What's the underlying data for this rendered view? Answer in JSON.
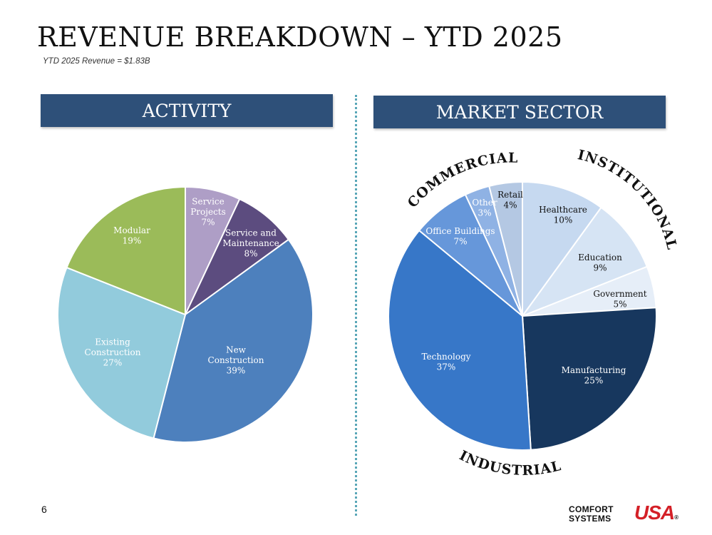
{
  "title": "REVENUE BREAKDOWN – YTD 2025",
  "subtitle": "YTD 2025 Revenue = $1.83B",
  "page_number": "6",
  "logo": {
    "line1": "COMFORT",
    "line2": "SYSTEMS",
    "usa": "USA",
    "registered": "®"
  },
  "chart_data": [
    {
      "type": "pie",
      "title": "ACTIVITY",
      "slices": [
        {
          "label": "Service Projects",
          "lines": [
            "Service",
            "Projects",
            "7%"
          ],
          "value": 7,
          "color": "#ae9ec6",
          "text_color": "#ffffff"
        },
        {
          "label": "Service and Maintenance",
          "lines": [
            "Service and",
            "Maintenance",
            "8%"
          ],
          "value": 8,
          "color": "#5c4c7f",
          "text_color": "#ffffff"
        },
        {
          "label": "New Construction",
          "lines": [
            "New",
            "Construction",
            "39%"
          ],
          "value": 39,
          "color": "#4d80bd",
          "text_color": "#ffffff"
        },
        {
          "label": "Existing Construction",
          "lines": [
            "Existing",
            "Construction",
            "27%"
          ],
          "value": 27,
          "color": "#92cbdc",
          "text_color": "#ffffff"
        },
        {
          "label": "Modular",
          "lines": [
            "Modular",
            "19%"
          ],
          "value": 19,
          "color": "#9bbb59",
          "text_color": "#ffffff"
        }
      ]
    },
    {
      "type": "pie",
      "title": "MARKET SECTOR",
      "slices": [
        {
          "label": "Healthcare",
          "lines": [
            "Healthcare",
            "10%"
          ],
          "value": 10,
          "color": "#c6d9f0",
          "text_color": "#111111"
        },
        {
          "label": "Education",
          "lines": [
            "Education",
            "9%"
          ],
          "value": 9,
          "color": "#d6e4f4",
          "text_color": "#111111"
        },
        {
          "label": "Government",
          "lines": [
            "Government",
            "5%"
          ],
          "value": 5,
          "color": "#e6eef8",
          "text_color": "#111111"
        },
        {
          "label": "Manufacturing",
          "lines": [
            "Manufacturing",
            "25%"
          ],
          "value": 25,
          "color": "#17375e",
          "text_color": "#ffffff"
        },
        {
          "label": "Technology",
          "lines": [
            "Technology",
            "37%"
          ],
          "value": 37,
          "color": "#3777c8",
          "text_color": "#ffffff"
        },
        {
          "label": "Office Buildings",
          "lines": [
            "Office Buildings",
            "7%"
          ],
          "value": 7,
          "color": "#6697da",
          "text_color": "#ffffff"
        },
        {
          "label": "Other",
          "lines": [
            "Other",
            "3%"
          ],
          "value": 3,
          "color": "#8fb2e4",
          "text_color": "#ffffff"
        },
        {
          "label": "Retail",
          "lines": [
            "Retail",
            "4%"
          ],
          "value": 4,
          "color": "#b4c8e3",
          "text_color": "#111111"
        }
      ],
      "group_labels": [
        "COMMERCIAL",
        "INSTITUTIONAL",
        "INDUSTRIAL"
      ]
    }
  ]
}
